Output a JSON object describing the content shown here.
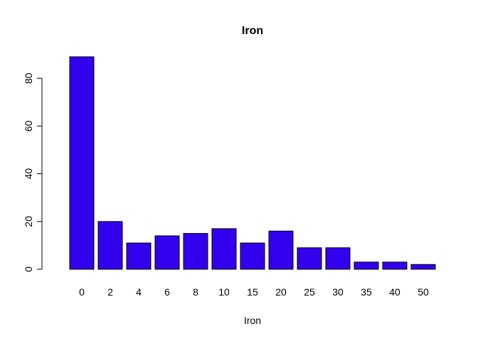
{
  "chart_data": {
    "type": "bar",
    "title": "Iron",
    "xlabel": "Iron",
    "ylabel": "",
    "categories": [
      "0",
      "2",
      "4",
      "6",
      "8",
      "10",
      "15",
      "20",
      "25",
      "30",
      "35",
      "40",
      "50"
    ],
    "values": [
      89,
      20,
      11,
      14,
      15,
      17,
      11,
      16,
      9,
      9,
      3,
      3,
      2
    ],
    "ylim": [
      0,
      89
    ],
    "yticks": [
      0,
      20,
      40,
      60,
      80
    ],
    "bar_color": "#3300ee",
    "grid": false,
    "legend": "none"
  }
}
